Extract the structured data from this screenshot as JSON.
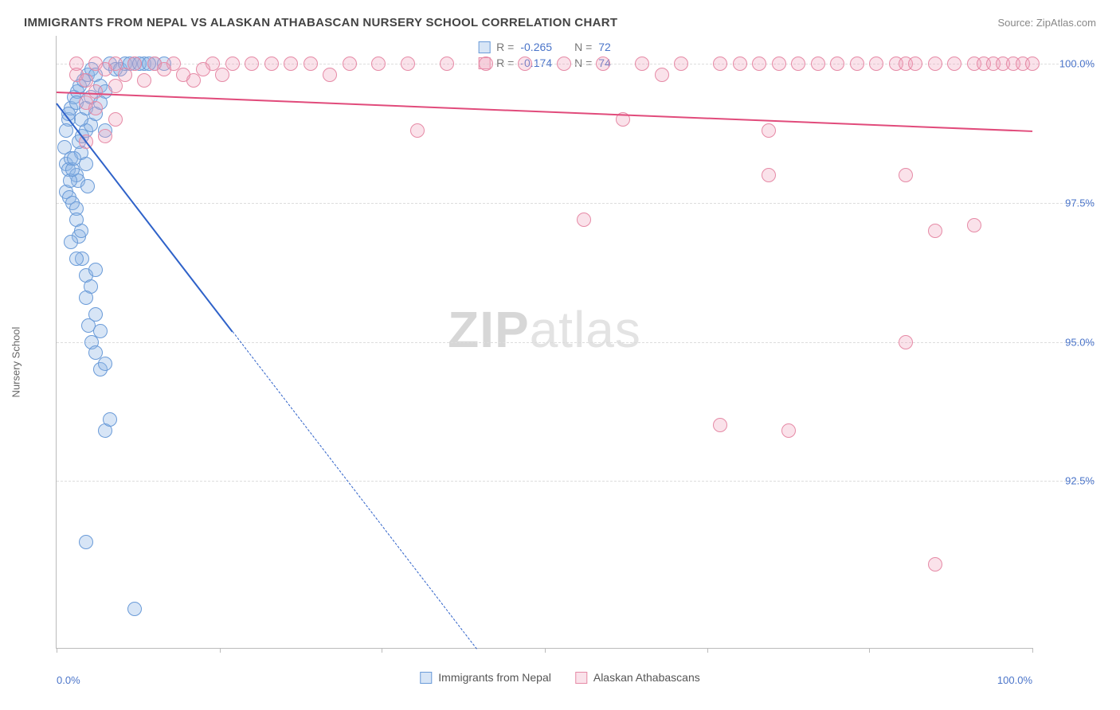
{
  "header": {
    "title": "IMMIGRANTS FROM NEPAL VS ALASKAN ATHABASCAN NURSERY SCHOOL CORRELATION CHART",
    "source_prefix": "Source: ",
    "source_name": "ZipAtlas.com"
  },
  "watermark": {
    "bold": "ZIP",
    "light": "atlas"
  },
  "axes": {
    "ylabel": "Nursery School",
    "ylim": [
      89.5,
      100.5
    ],
    "xlim": [
      0,
      100
    ],
    "yticks": [
      {
        "v": 92.5,
        "label": "92.5%"
      },
      {
        "v": 95.0,
        "label": "95.0%"
      },
      {
        "v": 97.5,
        "label": "97.5%"
      },
      {
        "v": 100.0,
        "label": "100.0%"
      }
    ],
    "xticks": [
      0,
      16.7,
      33.3,
      50,
      66.7,
      83.3,
      100
    ],
    "xtick_labels": {
      "0": "0.0%",
      "100": "100.0%"
    },
    "grid_color": "#dddddd",
    "axis_color": "#bbbbbb",
    "tick_label_color": "#4a74c9",
    "axis_label_color": "#666666"
  },
  "series": [
    {
      "name": "Immigrants from Nepal",
      "color_stroke": "#6a9bd8",
      "color_fill": "rgba(140,180,230,0.35)",
      "marker_r": 9,
      "R": "-0.265",
      "N": "72",
      "trend": {
        "x1": 0,
        "y1": 99.3,
        "x2": 18,
        "y2": 95.2,
        "x2_ext": 43,
        "y2_ext": 89.5,
        "color": "#2f62c9"
      },
      "points": [
        [
          1.0,
          98.2
        ],
        [
          1.2,
          98.1
        ],
        [
          1.5,
          98.3
        ],
        [
          2.0,
          98.0
        ],
        [
          2.2,
          97.9
        ],
        [
          2.5,
          98.4
        ],
        [
          3.0,
          98.2
        ],
        [
          3.2,
          97.8
        ],
        [
          1.0,
          97.7
        ],
        [
          1.3,
          97.6
        ],
        [
          1.6,
          97.5
        ],
        [
          2.0,
          97.4
        ],
        [
          2.3,
          98.6
        ],
        [
          2.6,
          98.7
        ],
        [
          3.0,
          98.8
        ],
        [
          3.5,
          98.9
        ],
        [
          1.2,
          99.0
        ],
        [
          1.5,
          99.2
        ],
        [
          1.8,
          99.4
        ],
        [
          2.1,
          99.5
        ],
        [
          2.4,
          99.6
        ],
        [
          2.8,
          99.7
        ],
        [
          3.2,
          99.8
        ],
        [
          3.6,
          99.9
        ],
        [
          4.0,
          99.8
        ],
        [
          4.5,
          99.6
        ],
        [
          5.0,
          99.5
        ],
        [
          5.5,
          100.0
        ],
        [
          6.0,
          99.9
        ],
        [
          6.5,
          99.9
        ],
        [
          7.0,
          100.0
        ],
        [
          8.0,
          100.0
        ],
        [
          9.0,
          100.0
        ],
        [
          10.0,
          100.0
        ],
        [
          11.0,
          100.0
        ],
        [
          7.5,
          100.0
        ],
        [
          8.5,
          100.0
        ],
        [
          9.5,
          100.0
        ],
        [
          2.0,
          97.2
        ],
        [
          2.3,
          96.9
        ],
        [
          2.6,
          96.5
        ],
        [
          3.0,
          96.2
        ],
        [
          3.5,
          96.0
        ],
        [
          4.0,
          96.3
        ],
        [
          3.0,
          95.8
        ],
        [
          3.3,
          95.3
        ],
        [
          3.6,
          95.0
        ],
        [
          4.0,
          95.5
        ],
        [
          4.5,
          95.2
        ],
        [
          4.0,
          94.8
        ],
        [
          4.5,
          94.5
        ],
        [
          5.0,
          94.6
        ],
        [
          5.0,
          93.4
        ],
        [
          5.5,
          93.6
        ],
        [
          3.0,
          91.4
        ],
        [
          8.0,
          90.2
        ],
        [
          0.8,
          98.5
        ],
        [
          1.0,
          98.8
        ],
        [
          1.2,
          99.1
        ],
        [
          1.4,
          97.9
        ],
        [
          1.6,
          98.1
        ],
        [
          1.8,
          98.3
        ],
        [
          2.0,
          99.3
        ],
        [
          2.5,
          99.0
        ],
        [
          3.0,
          99.2
        ],
        [
          3.5,
          99.4
        ],
        [
          4.0,
          99.1
        ],
        [
          4.5,
          99.3
        ],
        [
          1.5,
          96.8
        ],
        [
          2.0,
          96.5
        ],
        [
          2.5,
          97.0
        ],
        [
          5.0,
          98.8
        ]
      ]
    },
    {
      "name": "Alaskan Athabascans",
      "color_stroke": "#e68aa6",
      "color_fill": "rgba(240,160,185,0.30)",
      "marker_r": 9,
      "R": "-0.174",
      "N": "74",
      "trend": {
        "x1": 0,
        "y1": 99.5,
        "x2": 100,
        "y2": 98.8,
        "color": "#e14b7b"
      },
      "points": [
        [
          2,
          100.0
        ],
        [
          4,
          100.0
        ],
        [
          6,
          100.0
        ],
        [
          8,
          100.0
        ],
        [
          10,
          100.0
        ],
        [
          12,
          100.0
        ],
        [
          14,
          99.7
        ],
        [
          16,
          100.0
        ],
        [
          18,
          100.0
        ],
        [
          20,
          100.0
        ],
        [
          22,
          100.0
        ],
        [
          24,
          100.0
        ],
        [
          26,
          100.0
        ],
        [
          28,
          99.8
        ],
        [
          30,
          100.0
        ],
        [
          33,
          100.0
        ],
        [
          36,
          100.0
        ],
        [
          40,
          100.0
        ],
        [
          44,
          100.0
        ],
        [
          48,
          100.0
        ],
        [
          52,
          100.0
        ],
        [
          56,
          100.0
        ],
        [
          58,
          99.0
        ],
        [
          60,
          100.0
        ],
        [
          62,
          99.8
        ],
        [
          64,
          100.0
        ],
        [
          68,
          100.0
        ],
        [
          70,
          100.0
        ],
        [
          72,
          100.0
        ],
        [
          74,
          100.0
        ],
        [
          76,
          100.0
        ],
        [
          78,
          100.0
        ],
        [
          80,
          100.0
        ],
        [
          82,
          100.0
        ],
        [
          84,
          100.0
        ],
        [
          86,
          100.0
        ],
        [
          87,
          100.0
        ],
        [
          88,
          100.0
        ],
        [
          90,
          100.0
        ],
        [
          92,
          100.0
        ],
        [
          94,
          100.0
        ],
        [
          95,
          100.0
        ],
        [
          96,
          100.0
        ],
        [
          97,
          100.0
        ],
        [
          98,
          100.0
        ],
        [
          99,
          100.0
        ],
        [
          100,
          100.0
        ],
        [
          3,
          99.3
        ],
        [
          4,
          99.2
        ],
        [
          6,
          99.0
        ],
        [
          3,
          98.6
        ],
        [
          5,
          98.7
        ],
        [
          4,
          99.5
        ],
        [
          6,
          99.6
        ],
        [
          37,
          98.8
        ],
        [
          54,
          97.2
        ],
        [
          68,
          93.5
        ],
        [
          73,
          98.0
        ],
        [
          73,
          98.8
        ],
        [
          87,
          98.0
        ],
        [
          75,
          93.4
        ],
        [
          90,
          97.0
        ],
        [
          94,
          97.1
        ],
        [
          87,
          95.0
        ],
        [
          90,
          91.0
        ],
        [
          2,
          99.8
        ],
        [
          3,
          99.7
        ],
        [
          5,
          99.9
        ],
        [
          7,
          99.8
        ],
        [
          9,
          99.7
        ],
        [
          11,
          99.9
        ],
        [
          13,
          99.8
        ],
        [
          15,
          99.9
        ],
        [
          17,
          99.8
        ]
      ]
    }
  ],
  "legend_bottom": [
    {
      "swatch_stroke": "#6a9bd8",
      "swatch_fill": "rgba(140,180,230,0.35)",
      "label": "Immigrants from Nepal"
    },
    {
      "swatch_stroke": "#e68aa6",
      "swatch_fill": "rgba(240,160,185,0.30)",
      "label": "Alaskan Athabascans"
    }
  ]
}
